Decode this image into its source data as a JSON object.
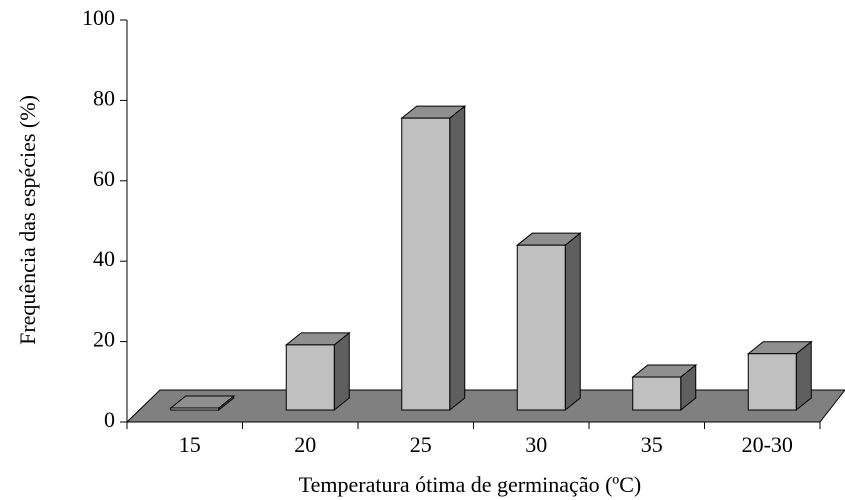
{
  "chart_data": {
    "type": "bar3d",
    "xlabel": "Temperatura ótima de germinação (ºC)",
    "ylabel": "Frequência das espécies (%)",
    "categories": [
      "15",
      "20",
      "25",
      "30",
      "35",
      "20-30"
    ],
    "values": [
      0.5,
      16.2,
      72.6,
      41,
      8.2,
      14
    ],
    "color": "#c0c0c0",
    "ylim": [
      0,
      100
    ],
    "yticks": [
      0,
      20,
      40,
      60,
      80,
      100
    ]
  }
}
